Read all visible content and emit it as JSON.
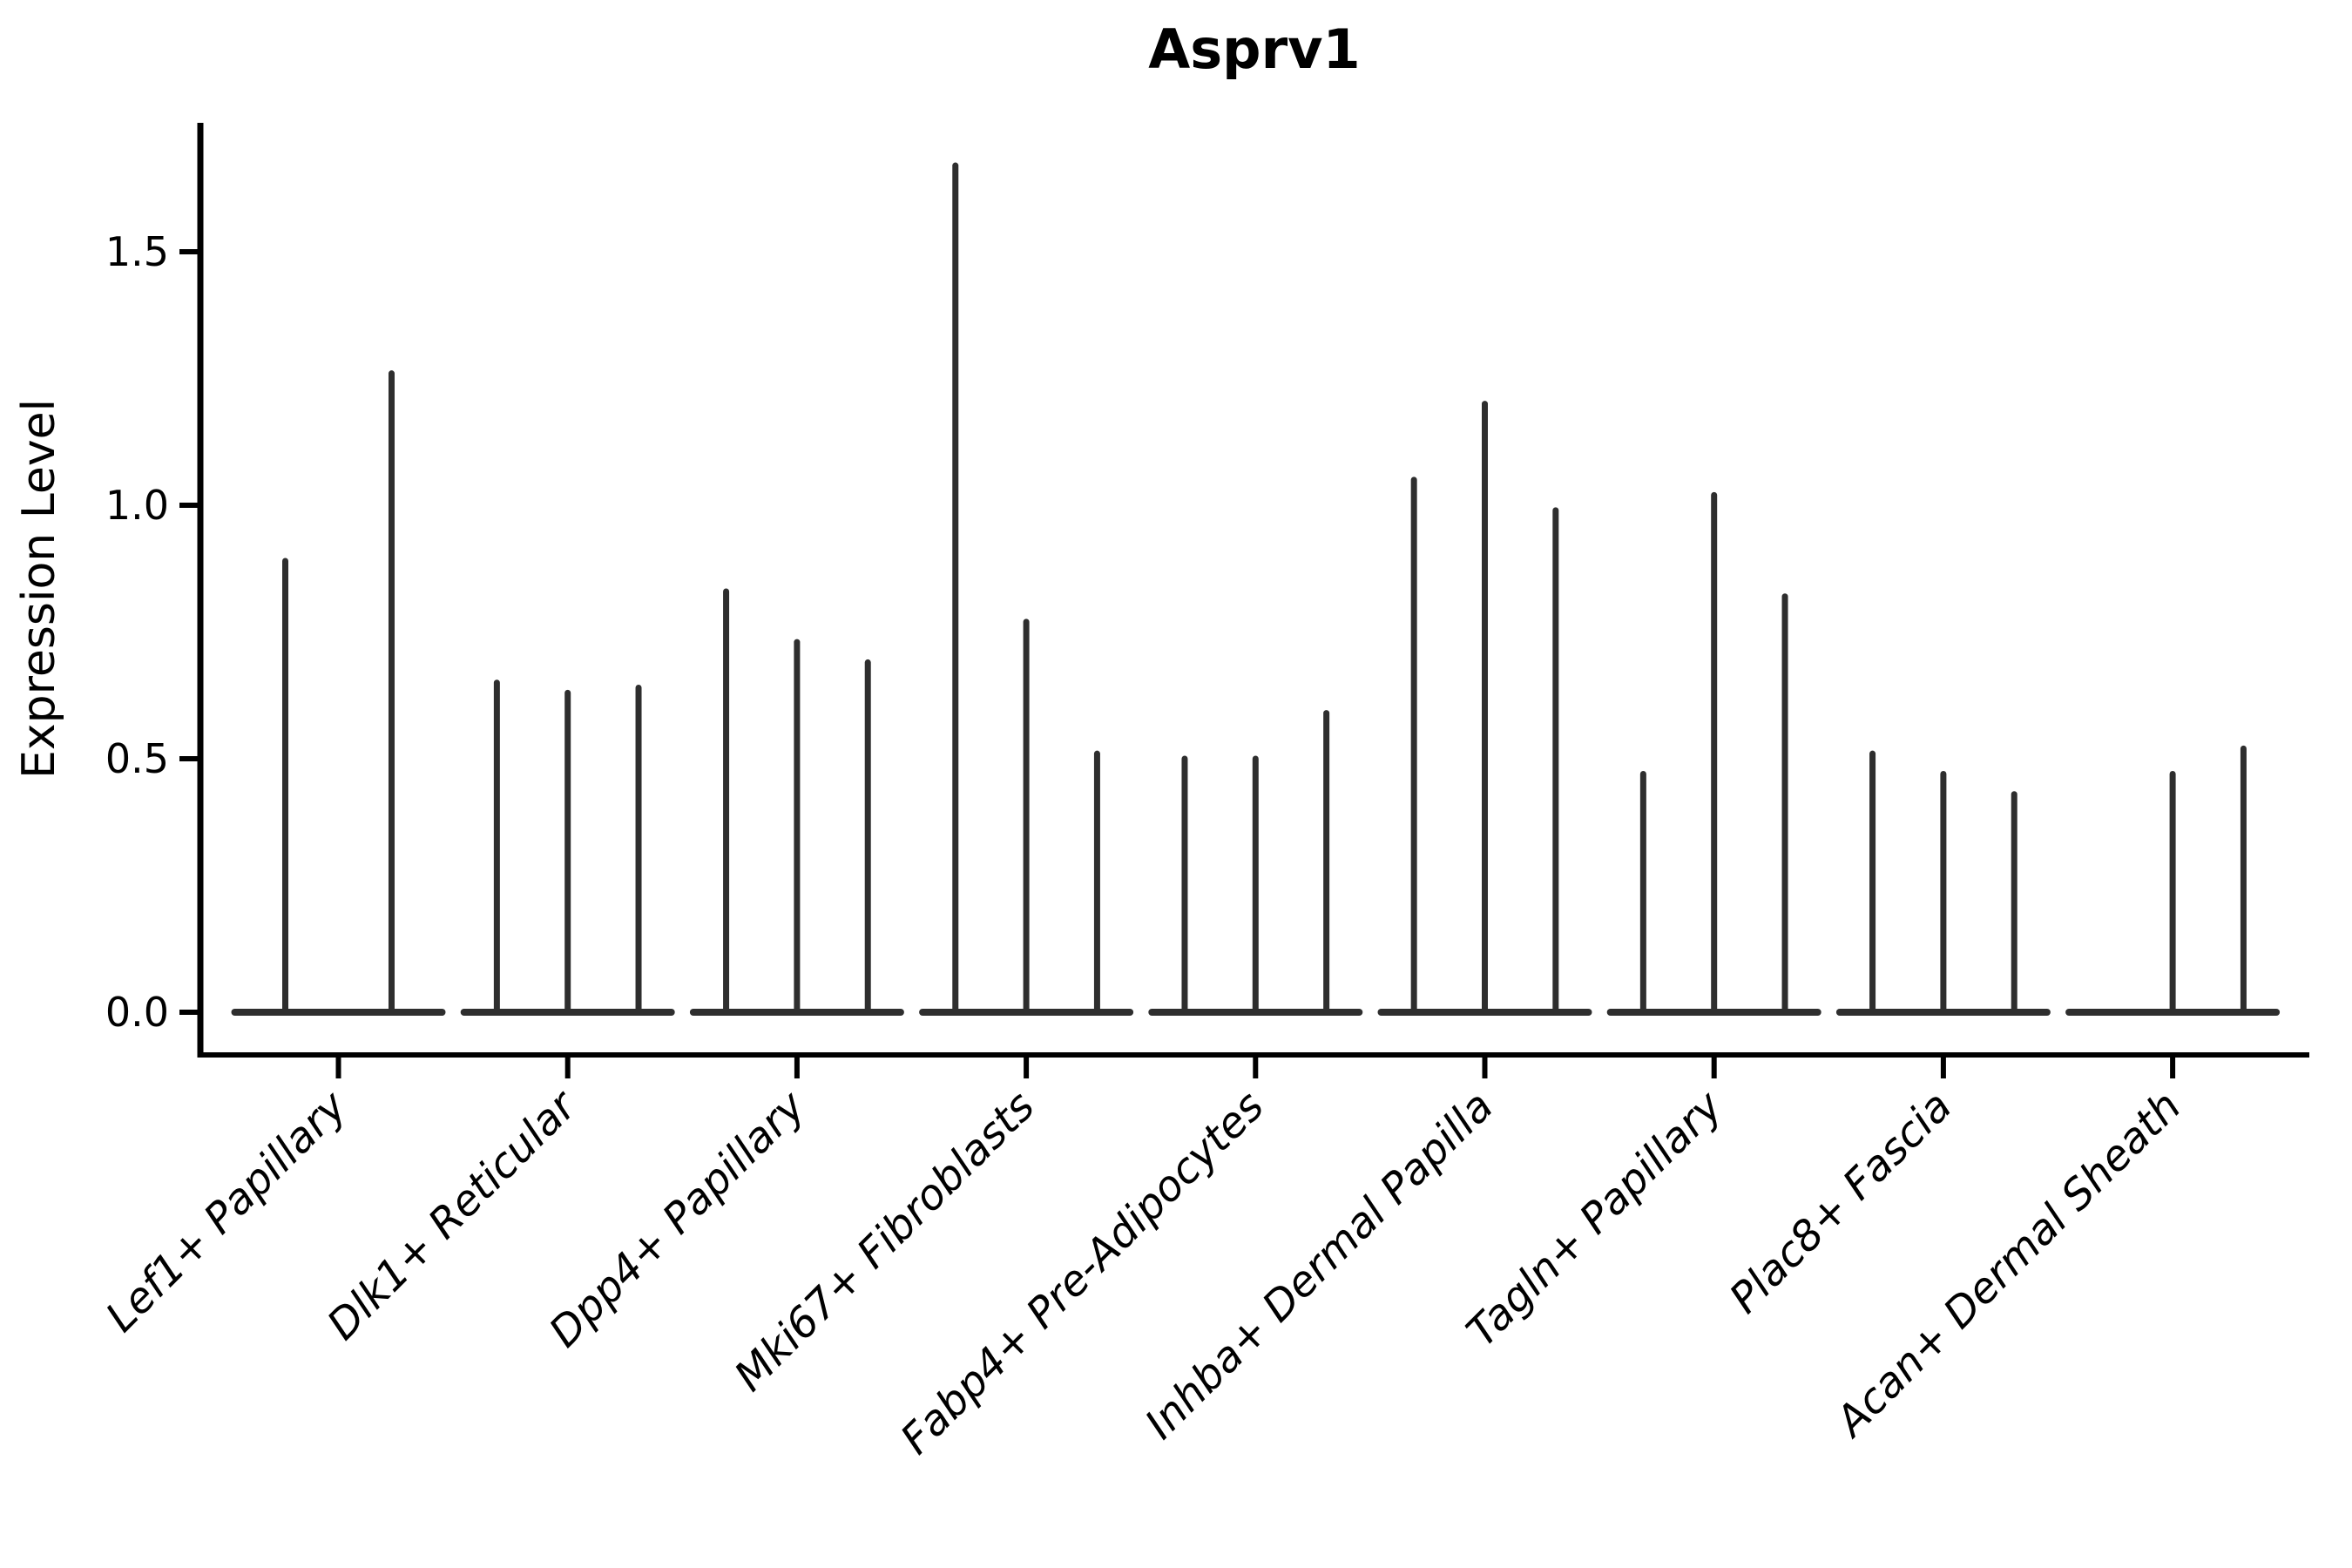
{
  "chart_data": {
    "type": "violin",
    "title": "Asprv1",
    "ylabel": "Expression Level",
    "xlabel": "",
    "yticks": [
      0.0,
      0.5,
      1.0,
      1.5
    ],
    "ytick_labels": [
      "0.0",
      "0.5",
      "1.0",
      "1.5"
    ],
    "ylim": [
      -0.08,
      1.75
    ],
    "grid": false,
    "legend_position": "none",
    "categories": [
      "Lef1+ Papillary",
      "Dlk1+ Reticular",
      "Dpp4+ Papillary",
      "Mki67+ Fibroblasts",
      "Fabp4+ Pre-Adipocytes",
      "Inhba+ Dermal Papilla",
      "Tagln+ Papillary",
      "Plac8+ Fascia",
      "Acan+ Dermal Sheath"
    ],
    "groups": [
      {
        "label": "Lef1+ Papillary",
        "violin_maxima": [
          0.89,
          1.26
        ]
      },
      {
        "label": "Dlk1+ Reticular",
        "violin_maxima": [
          0.65,
          0.63,
          0.64
        ]
      },
      {
        "label": "Dpp4+ Papillary",
        "violin_maxima": [
          0.83,
          0.73,
          0.69
        ]
      },
      {
        "label": "Mki67+ Fibroblasts",
        "violin_maxima": [
          1.67,
          0.77,
          0.51
        ]
      },
      {
        "label": "Fabp4+ Pre-Adipocytes",
        "violin_maxima": [
          0.5,
          0.5,
          0.59
        ]
      },
      {
        "label": "Inhba+ Dermal Papilla",
        "violin_maxima": [
          1.05,
          1.2,
          0.99
        ]
      },
      {
        "label": "Tagln+ Papillary",
        "violin_maxima": [
          0.47,
          1.02,
          0.82
        ]
      },
      {
        "label": "Plac8+ Fascia",
        "violin_maxima": [
          0.51,
          0.47,
          0.43
        ]
      },
      {
        "label": "Acan+ Dermal Sheath",
        "violin_maxima": [
          0,
          0.47,
          0.52
        ]
      }
    ],
    "colors": {
      "violin_stroke": "#2e2e2e",
      "axis": "#000000",
      "text": "#000000",
      "background": "#ffffff"
    }
  }
}
